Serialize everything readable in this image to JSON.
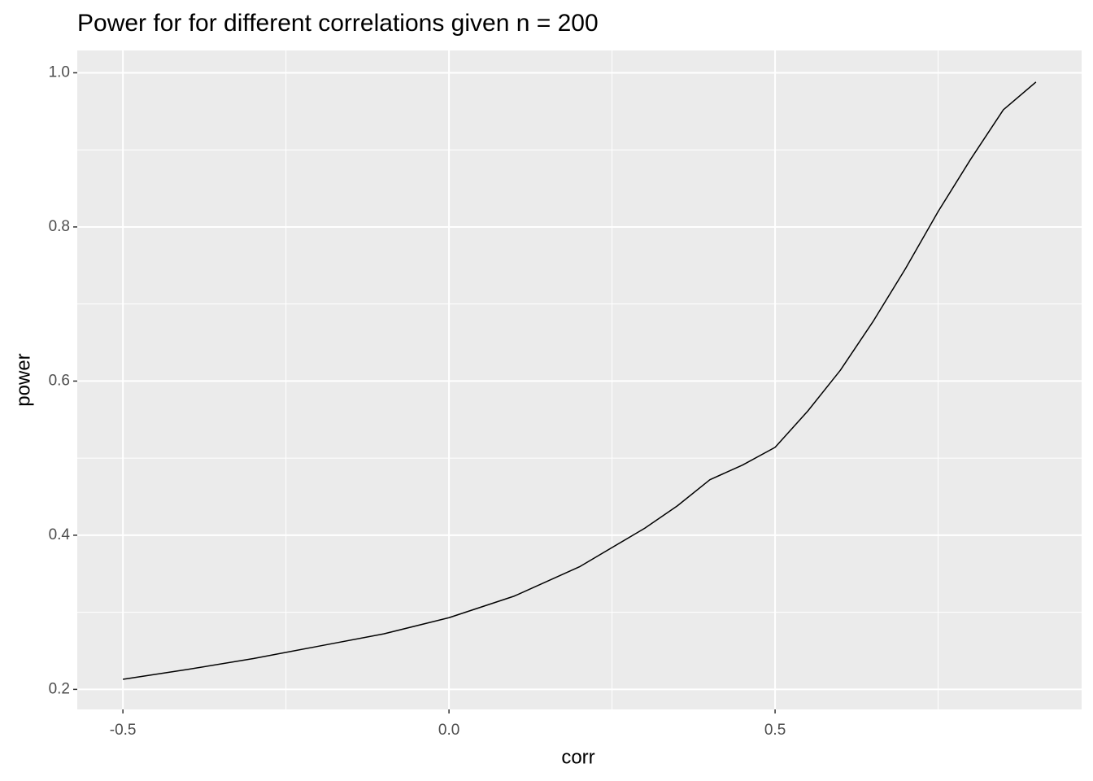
{
  "chart_data": {
    "type": "line",
    "title": "Power for for different correlations given n = 200",
    "x_label": "corr",
    "y_label": "power",
    "x": [
      -0.5,
      -0.4,
      -0.3,
      -0.2,
      -0.1,
      0.0,
      0.1,
      0.2,
      0.3,
      0.35,
      0.4,
      0.45,
      0.5,
      0.55,
      0.6,
      0.65,
      0.7,
      0.75,
      0.8,
      0.85,
      0.9
    ],
    "series": [
      {
        "name": "power",
        "color": "#000000",
        "values": [
          0.213,
          0.226,
          0.24,
          0.256,
          0.272,
          0.293,
          0.321,
          0.359,
          0.409,
          0.438,
          0.472,
          0.491,
          0.514,
          0.561,
          0.614,
          0.677,
          0.746,
          0.82,
          0.888,
          0.952,
          0.988
        ]
      }
    ],
    "xlim": [
      -0.57,
      0.97
    ],
    "ylim": [
      0.174,
      1.029
    ],
    "xticks": [
      -0.5,
      {
        "value": 0,
        "label": "0.0"
      },
      0.5
    ],
    "yticks": [
      0.2,
      0.4,
      0.6,
      0.8,
      {
        "value": 1,
        "label": "1.0"
      }
    ],
    "xticks_minor": [
      -0.25,
      0.25,
      0.75
    ],
    "yticks_minor": [
      0.3,
      0.5,
      0.7,
      0.9
    ],
    "grid": true,
    "panel_color": "#ebebeb"
  }
}
